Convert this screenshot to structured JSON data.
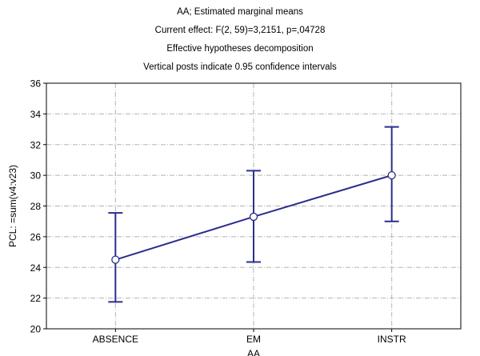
{
  "chart_data": {
    "type": "line",
    "title_lines": [
      "AA; Estimated marginal means",
      "Current effect: F(2, 59)=3,2151, p=,04728",
      "Effective hypotheses decomposition",
      "Vertical posts indicate 0.95 confidence intervals"
    ],
    "xlabel": "AA",
    "ylabel": "PCL: =sum(v4:v23)",
    "categories": [
      "ABSENCE",
      "EM",
      "INSTR"
    ],
    "series": [
      {
        "values": [
          24.5,
          27.3,
          30.0
        ],
        "ci_lower": [
          21.75,
          24.35,
          27.0
        ],
        "ci_upper": [
          27.55,
          30.3,
          33.15
        ],
        "color": "#2b2e8c"
      }
    ],
    "ylim": [
      20,
      36
    ],
    "yticks": [
      20,
      22,
      24,
      26,
      28,
      30,
      32,
      34,
      36
    ],
    "grid": true,
    "grid_style": "dash-dot"
  }
}
